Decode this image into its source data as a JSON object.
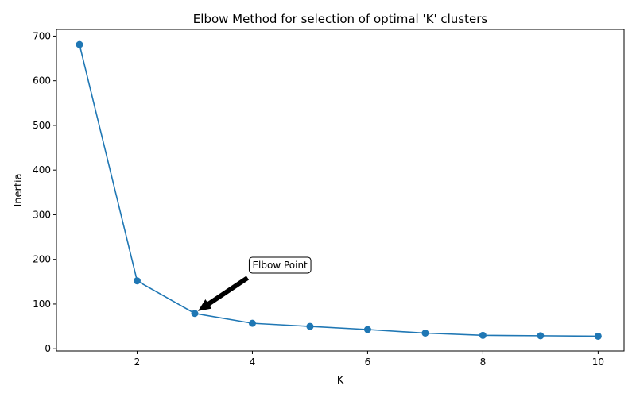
{
  "chart_data": {
    "type": "line",
    "title": "Elbow Method for selection of optimal 'K' clusters",
    "xlabel": "K",
    "ylabel": "Inertia",
    "x": [
      1,
      2,
      3,
      4,
      5,
      6,
      7,
      8,
      9,
      10
    ],
    "series": [
      {
        "values": [
          681,
          152,
          79,
          57,
          50,
          43,
          35,
          30,
          29,
          28
        ],
        "color": "#1f77b4",
        "marker": "circle"
      }
    ],
    "xlim": [
      0.6,
      10.45
    ],
    "ylim": [
      -5,
      715
    ],
    "xticks": [
      2,
      4,
      6,
      8,
      10
    ],
    "yticks": [
      0,
      100,
      200,
      300,
      400,
      500,
      600,
      700
    ],
    "grid": false,
    "annotation": {
      "text": "Elbow Point",
      "x": 3,
      "y": 79,
      "text_x": 4,
      "text_y": 180
    }
  }
}
